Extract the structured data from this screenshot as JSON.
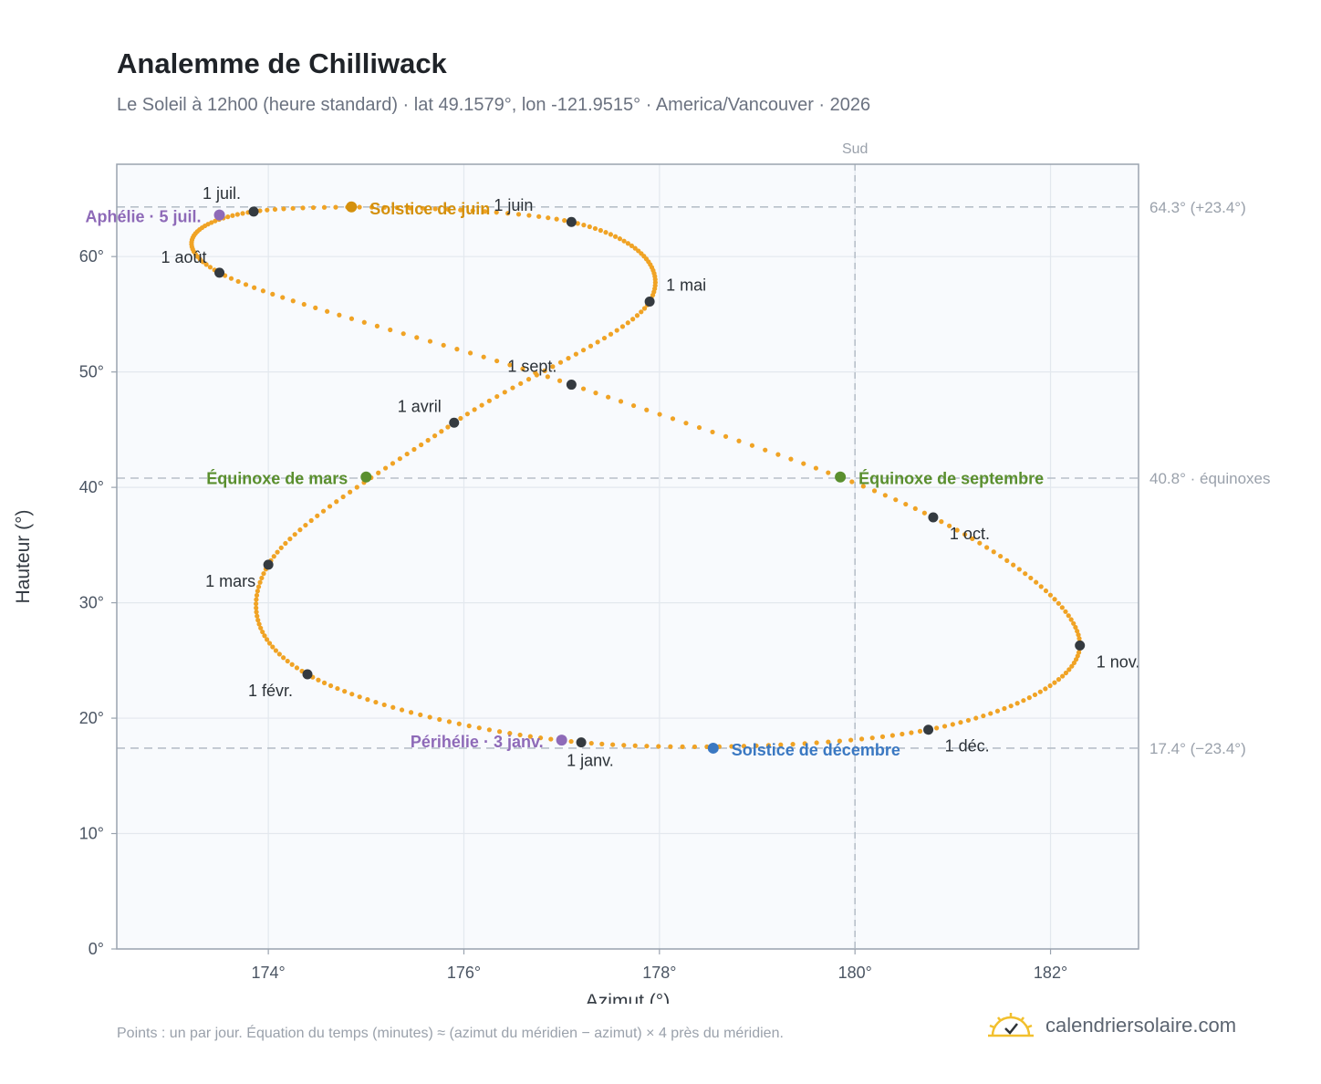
{
  "title": "Analemme de Chilliwack",
  "subtitle": "Le Soleil à 12h00 (heure standard) · lat 49.1579°, lon -121.9515° · America/Vancouver · 2026",
  "footnote": "Points : un par jour. Équation du temps (minutes) ≈ (azimut du méridien − azimut) × 4 près du méridien.",
  "brand": "calendriersolaire.com",
  "colors": {
    "curve": "#f0a325",
    "month_point": "#343a40",
    "june_solstice": "#d4900c",
    "december_solstice": "#3a78c2",
    "equinox": "#5a8f2e",
    "apsis": "#8e6ab8",
    "plot_bg": "#f8fafd",
    "grid": "#e3e8ee",
    "frame": "#9aa3af",
    "ref_line": "#b7c0c9"
  },
  "chart_data": {
    "type": "scatter",
    "xlabel": "Azimut (°)",
    "ylabel": "Hauteur (°)",
    "xlim": [
      172.45,
      182.9
    ],
    "ylim": [
      0,
      68
    ],
    "x_ticks": [
      174,
      176,
      178,
      180,
      182
    ],
    "x_tick_labels": [
      "174°",
      "176°",
      "178°",
      "180°",
      "182°"
    ],
    "y_ticks": [
      0,
      10,
      20,
      30,
      40,
      50,
      60
    ],
    "y_tick_labels": [
      "0°",
      "10°",
      "20°",
      "30°",
      "40°",
      "50°",
      "60°"
    ],
    "grid": true,
    "south_line": {
      "azimuth": 180,
      "label": "Sud"
    },
    "reference_lines": [
      {
        "altitude": 64.3,
        "label": "64.3° (+23.4°)"
      },
      {
        "altitude": 40.8,
        "label": "40.8° · équinoxes"
      },
      {
        "altitude": 17.4,
        "label": "17.4° (−23.4°)"
      }
    ],
    "month_points": [
      {
        "label": "1 janv.",
        "az": 177.2,
        "alt": 17.9
      },
      {
        "label": "1 févr.",
        "az": 174.4,
        "alt": 23.8
      },
      {
        "label": "1 mars",
        "az": 174.0,
        "alt": 33.3
      },
      {
        "label": "1 avril",
        "az": 175.9,
        "alt": 45.6
      },
      {
        "label": "1 mai",
        "az": 177.9,
        "alt": 56.1
      },
      {
        "label": "1 juin",
        "az": 177.1,
        "alt": 63.0
      },
      {
        "label": "1 juil.",
        "az": 173.85,
        "alt": 63.9
      },
      {
        "label": "1 août",
        "az": 173.5,
        "alt": 58.6
      },
      {
        "label": "1 sept.",
        "az": 177.1,
        "alt": 48.9
      },
      {
        "label": "1 oct.",
        "az": 180.8,
        "alt": 37.4
      },
      {
        "label": "1 nov.",
        "az": 182.3,
        "alt": 26.3
      },
      {
        "label": "1 déc.",
        "az": 180.75,
        "alt": 19.0
      }
    ],
    "events": [
      {
        "label": "Solstice de juin",
        "az": 174.85,
        "alt": 64.3,
        "color_key": "june_solstice"
      },
      {
        "label": "Solstice de décembre",
        "az": 178.55,
        "alt": 17.4,
        "color_key": "december_solstice"
      },
      {
        "label": "Équinoxe de mars",
        "az": 175.0,
        "alt": 40.9,
        "color_key": "equinox"
      },
      {
        "label": "Équinoxe de septembre",
        "az": 179.85,
        "alt": 40.9,
        "color_key": "equinox"
      },
      {
        "label": "Aphélie · 5 juil.",
        "az": 173.5,
        "alt": 63.6,
        "color_key": "apsis"
      },
      {
        "label": "Périhélie · 3 janv.",
        "az": 177.0,
        "alt": 18.1,
        "color_key": "apsis"
      }
    ]
  }
}
